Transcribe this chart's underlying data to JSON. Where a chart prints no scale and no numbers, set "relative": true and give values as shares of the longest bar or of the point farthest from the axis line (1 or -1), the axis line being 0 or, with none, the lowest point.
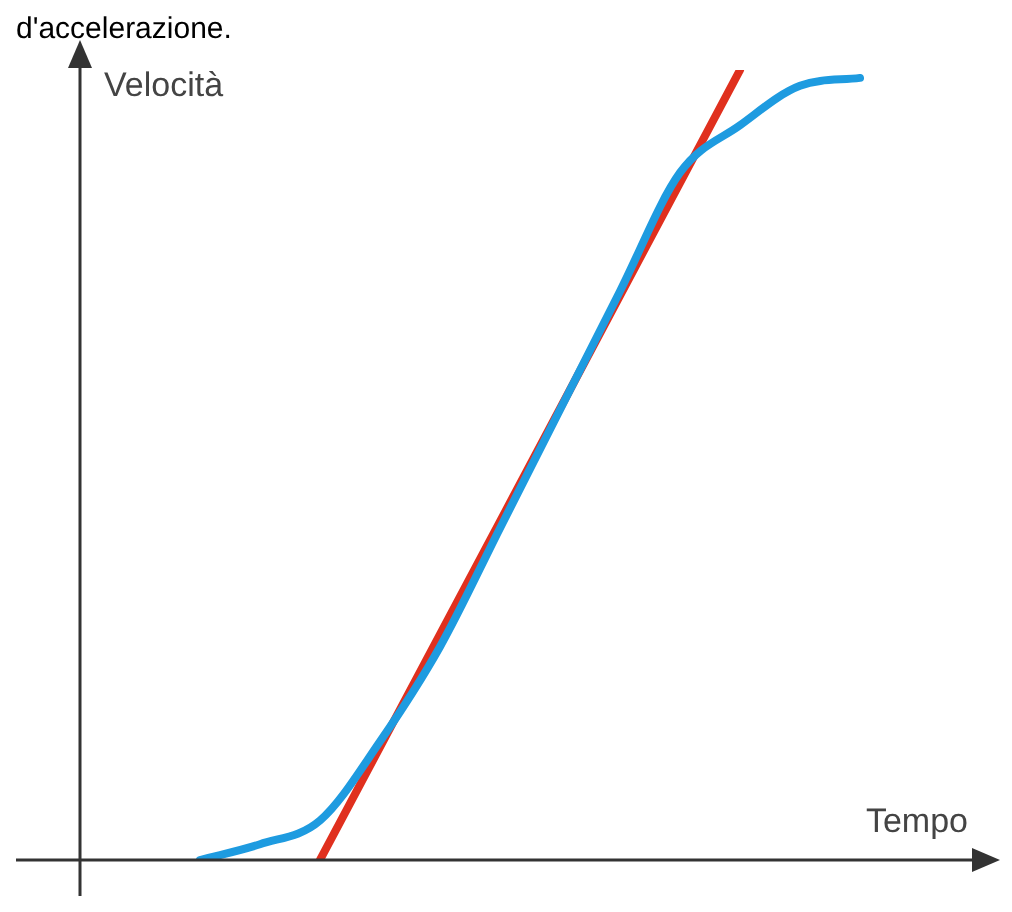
{
  "chart_data": {
    "type": "line",
    "title": "d'accelerazione.",
    "xlabel": "Tempo",
    "ylabel": "Velocità",
    "relative": true,
    "marker": "none",
    "grid": false,
    "legend": false,
    "categories": [
      null,
      null,
      null,
      null,
      null,
      null,
      null,
      null,
      null,
      null,
      null,
      null,
      null,
      null,
      null,
      null
    ],
    "series": [
      {
        "color": "#1e9be0",
        "values": [
          null,
          null,
          0,
          0.02,
          0.05,
          0.15,
          0.27,
          0.42,
          0.57,
          0.72,
          0.87,
          0.93,
          0.98,
          0.99,
          null,
          null
        ]
      },
      {
        "color": "#e0301e",
        "values": [
          null,
          null,
          null,
          null,
          0,
          null,
          null,
          null,
          null,
          null,
          null,
          1,
          null,
          null,
          null,
          null
        ]
      }
    ]
  }
}
